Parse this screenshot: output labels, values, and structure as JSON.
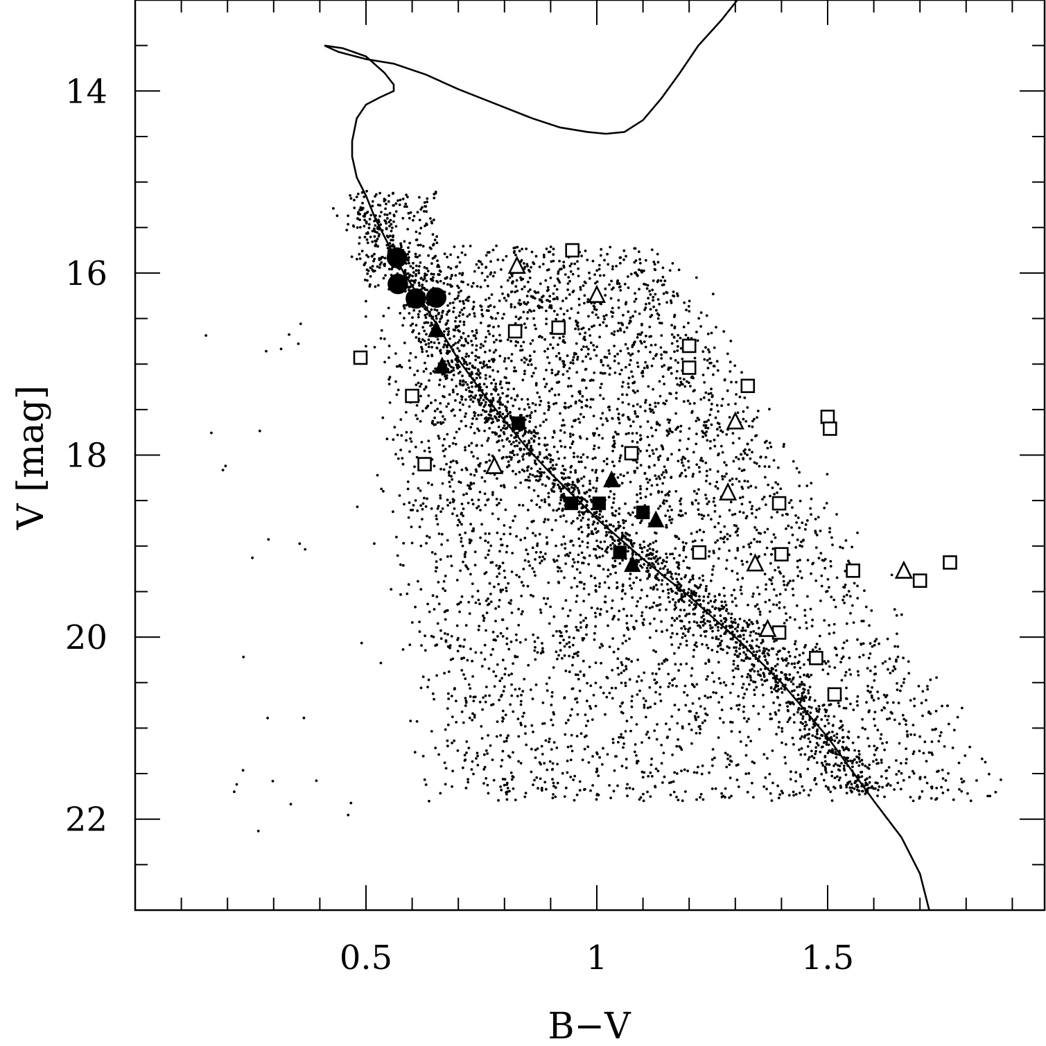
{
  "chart_data": {
    "type": "scatter",
    "xlabel": "B−V",
    "ylabel": "V [mag]",
    "xlim": [
      0.0,
      1.97
    ],
    "ylim": [
      23.0,
      13.0
    ],
    "y_inverted": true,
    "x_ticks_major": [
      {
        "value": 0.5,
        "label": "0.5"
      },
      {
        "value": 1.0,
        "label": "1"
      },
      {
        "value": 1.5,
        "label": "1.5"
      }
    ],
    "x_ticks_minor": [
      0.1,
      0.2,
      0.3,
      0.4,
      0.6,
      0.7,
      0.8,
      0.9,
      1.1,
      1.2,
      1.3,
      1.4,
      1.6,
      1.7,
      1.8,
      1.9
    ],
    "y_ticks_major": [
      {
        "value": 14,
        "label": "14"
      },
      {
        "value": 16,
        "label": "16"
      },
      {
        "value": 18,
        "label": "18"
      },
      {
        "value": 20,
        "label": "20"
      },
      {
        "value": 22,
        "label": "22"
      }
    ],
    "y_ticks_minor": [
      13.5,
      14.5,
      15.0,
      15.5,
      16.5,
      17.0,
      17.5,
      18.5,
      19.0,
      19.5,
      20.5,
      21.0,
      21.5,
      22.5
    ],
    "grid": false,
    "isochrone": {
      "x": [
        1.72,
        1.7,
        1.66,
        1.6,
        1.55,
        1.5,
        1.45,
        1.4,
        1.35,
        1.3,
        1.25,
        1.2,
        1.15,
        1.1,
        1.05,
        1.0,
        0.95,
        0.9,
        0.85,
        0.8,
        0.75,
        0.7,
        0.66,
        0.62,
        0.58,
        0.55,
        0.52,
        0.5,
        0.48,
        0.47,
        0.47,
        0.48,
        0.5,
        0.53,
        0.56,
        0.56,
        0.54,
        0.5,
        0.45,
        0.41,
        0.44,
        0.5,
        0.56,
        0.63,
        0.7,
        0.78,
        0.86,
        0.92,
        0.98,
        1.02,
        1.06,
        1.1,
        1.14,
        1.18,
        1.22,
        1.27,
        1.32
      ],
      "y": [
        23.0,
        22.6,
        22.2,
        21.8,
        21.45,
        21.1,
        20.8,
        20.5,
        20.25,
        20.0,
        19.78,
        19.55,
        19.35,
        19.14,
        18.92,
        18.7,
        18.45,
        18.2,
        17.93,
        17.62,
        17.3,
        16.95,
        16.62,
        16.3,
        15.98,
        15.7,
        15.4,
        15.15,
        14.95,
        14.72,
        14.55,
        14.3,
        14.15,
        14.07,
        14.0,
        13.93,
        13.8,
        13.62,
        13.53,
        13.5,
        13.57,
        13.65,
        13.7,
        13.82,
        13.98,
        14.14,
        14.3,
        14.4,
        14.45,
        14.47,
        14.45,
        14.32,
        14.08,
        13.8,
        13.5,
        13.22,
        12.9
      ]
    },
    "series": [
      {
        "marker": "filled-circle",
        "points": [
          [
            0.567,
            15.83
          ],
          [
            0.569,
            16.12
          ],
          [
            0.608,
            16.28
          ],
          [
            0.652,
            16.27
          ]
        ]
      },
      {
        "marker": "filled-triangle",
        "points": [
          [
            0.652,
            16.63
          ],
          [
            0.665,
            17.03
          ],
          [
            1.032,
            18.28
          ],
          [
            1.128,
            18.72
          ],
          [
            1.077,
            19.21
          ]
        ]
      },
      {
        "marker": "filled-square",
        "points": [
          [
            0.83,
            17.65
          ],
          [
            0.945,
            18.53
          ],
          [
            1.005,
            18.53
          ],
          [
            1.1,
            18.63
          ],
          [
            1.05,
            19.07
          ]
        ]
      },
      {
        "marker": "open-square",
        "points": [
          [
            0.488,
            16.93
          ],
          [
            0.6,
            17.35
          ],
          [
            0.627,
            18.1
          ],
          [
            0.823,
            16.64
          ],
          [
            0.917,
            16.6
          ],
          [
            0.947,
            15.75
          ],
          [
            1.075,
            17.98
          ],
          [
            1.2,
            16.8
          ],
          [
            1.2,
            17.04
          ],
          [
            1.327,
            17.24
          ],
          [
            1.5,
            17.58
          ],
          [
            1.505,
            17.71
          ],
          [
            1.395,
            18.53
          ],
          [
            1.222,
            19.07
          ],
          [
            1.4,
            19.09
          ],
          [
            1.395,
            19.95
          ],
          [
            1.475,
            20.23
          ],
          [
            1.515,
            20.63
          ],
          [
            1.555,
            19.27
          ],
          [
            1.7,
            19.38
          ],
          [
            1.765,
            19.18
          ]
        ]
      },
      {
        "marker": "open-triangle",
        "points": [
          [
            0.827,
            15.93
          ],
          [
            1.0,
            16.25
          ],
          [
            0.778,
            18.13
          ],
          [
            1.3,
            17.64
          ],
          [
            1.284,
            18.42
          ],
          [
            1.343,
            19.2
          ],
          [
            1.37,
            19.92
          ],
          [
            1.665,
            19.28
          ]
        ]
      }
    ]
  }
}
